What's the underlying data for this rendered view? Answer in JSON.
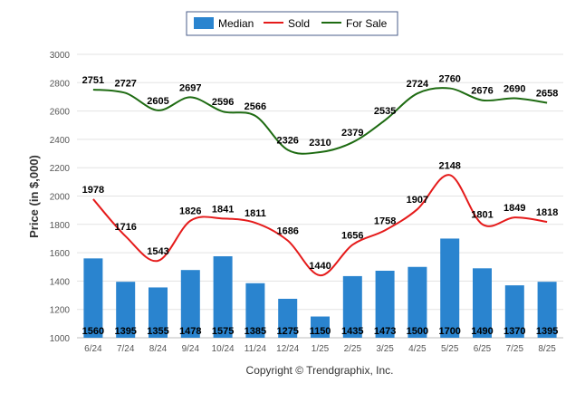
{
  "chart_data": {
    "type": "bar+line",
    "ylabel": "Price (in $,000)",
    "ylim": [
      1000,
      3000
    ],
    "yticks": [
      1000,
      1200,
      1400,
      1600,
      1800,
      2000,
      2200,
      2400,
      2600,
      2800,
      3000
    ],
    "categories": [
      "6/24",
      "7/24",
      "8/24",
      "9/24",
      "10/24",
      "11/24",
      "12/24",
      "1/25",
      "2/25",
      "3/25",
      "4/25",
      "5/25",
      "6/25",
      "7/25",
      "8/25"
    ],
    "series": [
      {
        "name": "Median",
        "type": "bar",
        "color": "#2a84cf",
        "values": [
          1560,
          1395,
          1355,
          1478,
          1575,
          1385,
          1275,
          1150,
          1435,
          1473,
          1500,
          1700,
          1490,
          1370,
          1395
        ]
      },
      {
        "name": "Sold",
        "type": "line",
        "color": "#e51b1b",
        "values": [
          1978,
          1716,
          1543,
          1826,
          1841,
          1811,
          1686,
          1440,
          1656,
          1758,
          1907,
          2148,
          1801,
          1849,
          1818
        ]
      },
      {
        "name": "For Sale",
        "type": "line",
        "color": "#1e6b12",
        "values": [
          2751,
          2727,
          2605,
          2697,
          2596,
          2566,
          2326,
          2310,
          2379,
          2535,
          2724,
          2760,
          2676,
          2690,
          2658
        ]
      }
    ],
    "grid": true,
    "legend": "top-center",
    "credit": "Copyright © Trendgraphix, Inc."
  }
}
